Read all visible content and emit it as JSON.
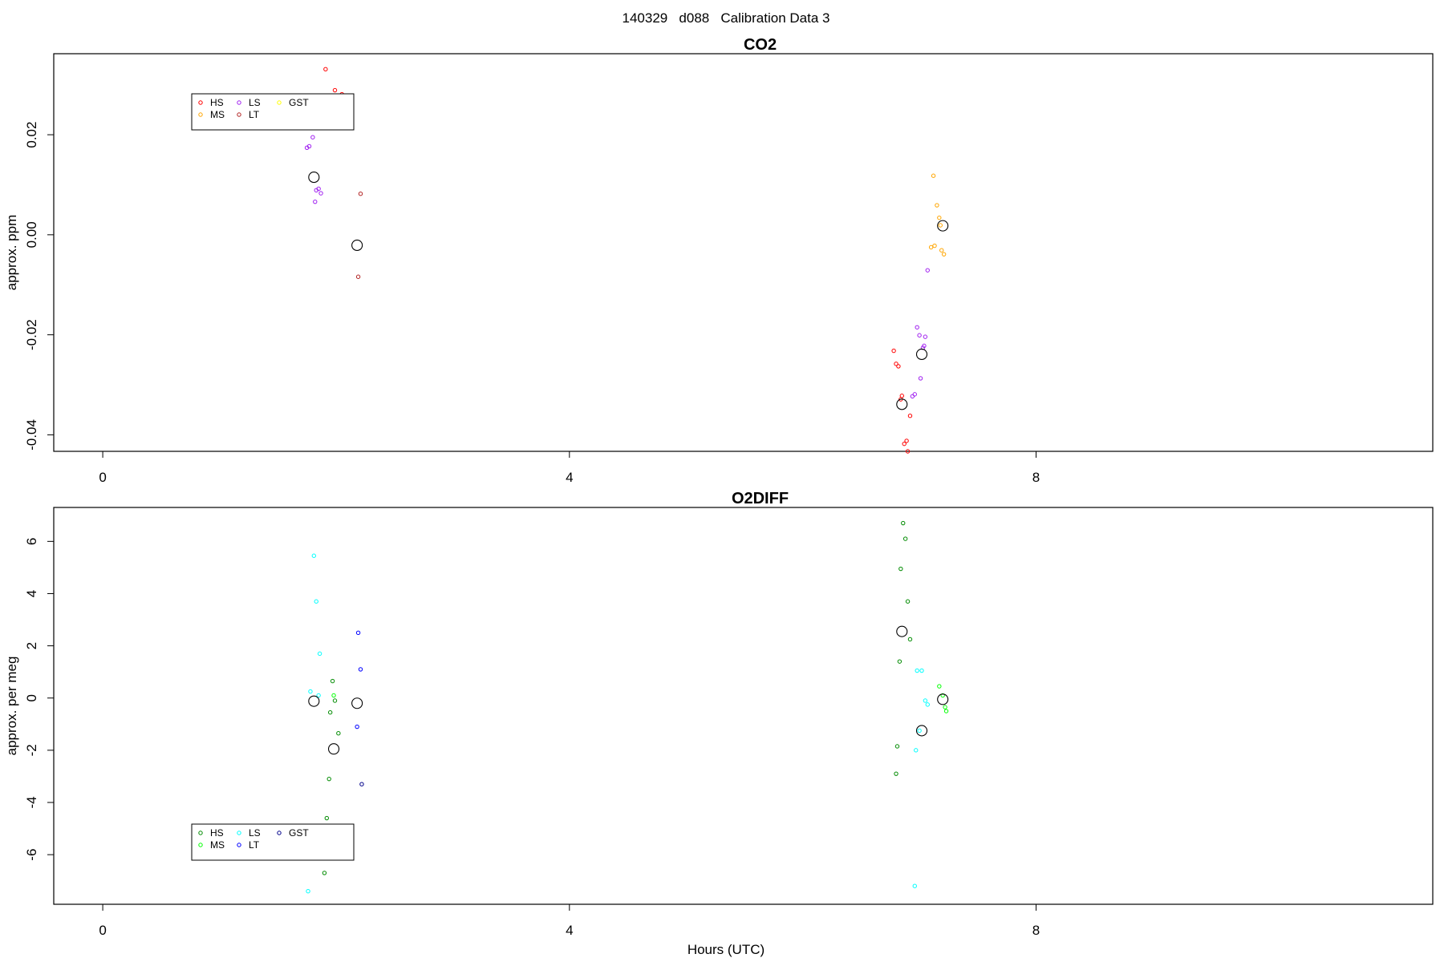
{
  "page_title": "140329   d088   Calibration Data 3",
  "x_axis_label": "Hours (UTC)",
  "chart_data": [
    {
      "type": "scatter",
      "title": "CO2",
      "ylabel": "approx. ppm",
      "xlabel": "",
      "xlim": [
        -0.42,
        11.4
      ],
      "ylim": [
        -0.0433,
        0.0362
      ],
      "xticks": [
        0,
        4,
        8
      ],
      "xtick_labels": [
        "0",
        "4",
        "8"
      ],
      "yticks": [
        -0.04,
        -0.02,
        0.0,
        0.02
      ],
      "ytick_labels": [
        "-0.04",
        "-0.02",
        "0.00",
        "0.02"
      ],
      "grid": false,
      "legend": {
        "placement": "top-left",
        "entries": [
          {
            "label": "HS",
            "color": "#ff0000"
          },
          {
            "label": "MS",
            "color": "#ffa500"
          },
          {
            "label": "LS",
            "color": "#a020f0"
          },
          {
            "label": "LT",
            "color": "#b22222"
          },
          {
            "label": "GST",
            "color": "#ffff00"
          }
        ]
      },
      "series": [
        {
          "key": "HS",
          "color": "#ff0000",
          "x": [
            1.91,
            1.99,
            2.05,
            6.78,
            6.8,
            6.82,
            6.85,
            6.87,
            6.89,
            6.9,
            6.92,
            6.84
          ],
          "y": [
            0.0331,
            0.0289,
            0.0281,
            -0.0232,
            -0.0258,
            -0.0263,
            -0.0322,
            -0.0418,
            -0.0412,
            -0.0433,
            -0.0362,
            -0.0329
          ]
        },
        {
          "key": "MS",
          "color": "#ffa500",
          "x": [
            7.12,
            7.15,
            7.17,
            7.1,
            7.13,
            7.19,
            7.21,
            7.18
          ],
          "y": [
            0.0118,
            0.0059,
            0.0034,
            -0.0025,
            -0.0022,
            -0.0031,
            -0.0039,
            0.0019
          ]
        },
        {
          "key": "LS",
          "color": "#a020f0",
          "x": [
            1.75,
            1.77,
            1.8,
            1.83,
            1.85,
            1.87,
            1.82,
            6.98,
            7.0,
            7.03,
            7.05,
            7.07,
            7.01,
            6.96,
            6.94,
            7.04
          ],
          "y": [
            0.0174,
            0.0177,
            0.0195,
            0.0089,
            0.0092,
            0.0083,
            0.0066,
            -0.0185,
            -0.0201,
            -0.0226,
            -0.0204,
            -0.0071,
            -0.0287,
            -0.0319,
            -0.0323,
            -0.0222
          ]
        },
        {
          "key": "LT",
          "color": "#b22222",
          "x": [
            2.21,
            2.19
          ],
          "y": [
            0.0082,
            -0.0084
          ]
        },
        {
          "key": "GST",
          "color": "#ffff00",
          "x": [],
          "y": []
        },
        {
          "key": "mean",
          "color": "#000000",
          "x": [
            1.81,
            2.18,
            6.85,
            7.02,
            7.2
          ],
          "y": [
            0.0115,
            -0.0021,
            -0.0339,
            -0.0239,
            0.0018
          ]
        }
      ]
    },
    {
      "type": "scatter",
      "title": "O2DIFF",
      "ylabel": "approx. per meg",
      "xlabel": "Hours (UTC)",
      "xlim": [
        -0.42,
        11.4
      ],
      "ylim": [
        -7.9,
        7.3
      ],
      "xticks": [
        0,
        4,
        8
      ],
      "xtick_labels": [
        "0",
        "4",
        "8"
      ],
      "yticks": [
        -6,
        -4,
        -2,
        0,
        2,
        4,
        6
      ],
      "ytick_labels": [
        "-6",
        "-4",
        "-2",
        "0",
        "2",
        "4",
        "6"
      ],
      "grid": false,
      "legend": {
        "placement": "bottom-left",
        "entries": [
          {
            "label": "HS",
            "color": "#008b00"
          },
          {
            "label": "MS",
            "color": "#00ff00"
          },
          {
            "label": "LS",
            "color": "#00ffff"
          },
          {
            "label": "LT",
            "color": "#0000ff"
          },
          {
            "label": "GST",
            "color": "#00008b"
          }
        ]
      },
      "series": [
        {
          "key": "HS",
          "color": "#008b00",
          "x": [
            1.97,
            1.95,
            1.99,
            2.02,
            1.94,
            1.92,
            1.9,
            6.86,
            6.88,
            6.84,
            6.9,
            6.92,
            6.83,
            6.81,
            6.8
          ],
          "y": [
            0.65,
            -0.55,
            -0.1,
            -1.35,
            -3.1,
            -4.6,
            -6.7,
            6.7,
            6.1,
            4.95,
            3.7,
            2.25,
            1.4,
            -1.85,
            -2.9
          ]
        },
        {
          "key": "MS",
          "color": "#00ff00",
          "x": [
            1.98,
            7.17,
            7.2,
            7.23,
            7.22
          ],
          "y": [
            0.1,
            0.45,
            0.1,
            -0.5,
            -0.35
          ]
        },
        {
          "key": "LS",
          "color": "#00ffff",
          "x": [
            1.81,
            1.83,
            1.86,
            1.78,
            1.85,
            1.76,
            6.98,
            7.02,
            7.05,
            7.07,
            6.97,
            6.96,
            7.0
          ],
          "y": [
            5.45,
            3.7,
            1.7,
            0.25,
            0.1,
            -7.4,
            1.05,
            1.05,
            -0.1,
            -0.25,
            -2.0,
            -7.2,
            -1.25
          ]
        },
        {
          "key": "LT",
          "color": "#0000ff",
          "x": [
            2.19,
            2.21,
            2.18
          ],
          "y": [
            2.5,
            1.1,
            -1.1
          ]
        },
        {
          "key": "GST",
          "color": "#00008b",
          "x": [
            2.22
          ],
          "y": [
            -3.3
          ]
        },
        {
          "key": "mean",
          "color": "#000000",
          "x": [
            1.81,
            1.98,
            2.18,
            6.85,
            7.02,
            7.2
          ],
          "y": [
            -0.12,
            -1.95,
            -0.2,
            2.55,
            -1.25,
            -0.05
          ]
        }
      ]
    }
  ]
}
